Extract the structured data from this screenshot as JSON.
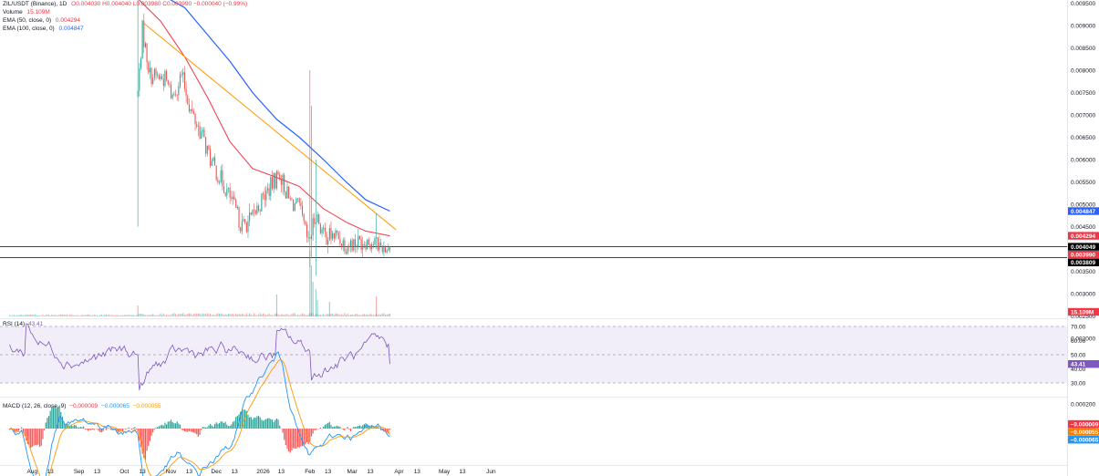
{
  "legend": {
    "symbol": "ZIL/USDT (Binance), 1D",
    "ohlc": "O0.004030 H0.004040 L0.003980 C0.003990 −0.000040 (−0.99%)",
    "volume_label": "Volume",
    "volume_value": "15.109M",
    "ema50_label": "EMA (50, close, 0)",
    "ema50_value": "0.004294",
    "ema100_label": "EMA (100, close, 0)",
    "ema100_value": "0.004847"
  },
  "rsi_legend": {
    "label": "RSI (14)",
    "value": "43.41"
  },
  "macd_legend": {
    "label": "MACD (12, 26, close, 9)",
    "v1": "−0.000009",
    "v2": "−0.000065",
    "v3": "−0.000055"
  },
  "price_axis_ticks": [
    "0.009500",
    "0.009000",
    "0.008500",
    "0.008000",
    "0.007500",
    "0.007000",
    "0.006500",
    "0.006000",
    "0.005500",
    "0.005000",
    "0.004500",
    "0.003500",
    "0.003000",
    "0.002500",
    "0.002000"
  ],
  "price_badges": [
    {
      "text": "0.004847",
      "color": "#2962ff",
      "value": 0.004847
    },
    {
      "text": "0.004294",
      "color": "#f23645",
      "value": 0.004294
    },
    {
      "text": "0.004049",
      "color": "#000000",
      "value": 0.004049
    },
    {
      "text": "0.003990",
      "color": "#f23645",
      "value": 0.00399
    },
    {
      "text": "0.003809",
      "color": "#000000",
      "value": 0.003809
    }
  ],
  "volume_badge": {
    "text": "15.109M",
    "color": "#f23645"
  },
  "rsi_axis_ticks": [
    "70.00",
    "60.00",
    "50.00",
    "40.00",
    "30.00"
  ],
  "rsi_badge": {
    "text": "43.41",
    "color": "#7e57c2"
  },
  "macd_axis_ticks": [
    "0.000200",
    "0.000000",
    "−0.000400"
  ],
  "macd_badges": [
    {
      "text": "−0.000009",
      "color": "#f23645"
    },
    {
      "text": "−0.000055",
      "color": "#f57c00"
    },
    {
      "text": "−0.000065",
      "color": "#2196f3"
    }
  ],
  "time_axis_ticks": [
    "Aug",
    "13",
    "Sep",
    "13",
    "Oct",
    "13",
    "Nov",
    "13",
    "Dec",
    "13",
    "2026",
    "13",
    "Feb",
    "13",
    "Mar",
    "13",
    "Apr",
    "13",
    "May",
    "13",
    "Jun"
  ],
  "colors": {
    "up": "#26a69a",
    "down": "#ef5350",
    "ema50": "#f23645",
    "ema100": "#2962ff",
    "trendline": "#ff9800",
    "rsi": "#7e57c2",
    "macd": "#2196f3",
    "signal": "#ff9800"
  },
  "chart_data": {
    "type": "line",
    "title": "ZIL/USDT (Binance), 1D",
    "x_start": "2025-07-17",
    "x_last_candle": "2026-03-26",
    "ylim": [
      0.0019,
      0.0096
    ],
    "horizontal_levels": [
      0.004049,
      0.003809
    ],
    "trendline": {
      "from": [
        "2025-10-14",
        0.00905
      ],
      "to": [
        "2026-03-30",
        0.00443
      ]
    },
    "series": [
      {
        "name": "Price (close, approximate)",
        "x": [
          "2025-10-10",
          "2025-10-20",
          "2025-10-30",
          "2025-11-10",
          "2025-11-20",
          "2025-11-30",
          "2025-12-10",
          "2025-12-20",
          "2025-12-30",
          "2026-01-10",
          "2026-01-20",
          "2026-01-30",
          "2026-02-05",
          "2026-02-15",
          "2026-02-25",
          "2026-03-05",
          "2026-03-15",
          "2026-03-26"
        ],
        "values": [
          0.0076,
          0.0078,
          0.0077,
          0.0072,
          0.0066,
          0.0055,
          0.0047,
          0.0048,
          0.0052,
          0.0057,
          0.005,
          0.0042,
          0.0047,
          0.0041,
          0.0042,
          0.0042,
          0.0042,
          0.00399
        ]
      },
      {
        "name": "EMA (50, close, 0)",
        "x": [
          "2025-10-10",
          "2025-10-25",
          "2025-11-10",
          "2025-11-25",
          "2025-12-10",
          "2025-12-25",
          "2026-01-10",
          "2026-01-25",
          "2026-02-10",
          "2026-02-25",
          "2026-03-10",
          "2026-03-26"
        ],
        "values": [
          0.0096,
          0.0091,
          0.0083,
          0.0074,
          0.0064,
          0.0058,
          0.0056,
          0.0054,
          0.0049,
          0.0046,
          0.0044,
          0.004294
        ]
      },
      {
        "name": "EMA (100, close, 0)",
        "x": [
          "2025-10-25",
          "2025-11-10",
          "2025-11-25",
          "2025-12-10",
          "2025-12-25",
          "2026-01-10",
          "2026-01-25",
          "2026-02-10",
          "2026-02-25",
          "2026-03-10",
          "2026-03-26"
        ],
        "values": [
          0.0097,
          0.0094,
          0.0088,
          0.0082,
          0.0075,
          0.0069,
          0.0065,
          0.006,
          0.0055,
          0.0051,
          0.004847
        ]
      }
    ]
  }
}
